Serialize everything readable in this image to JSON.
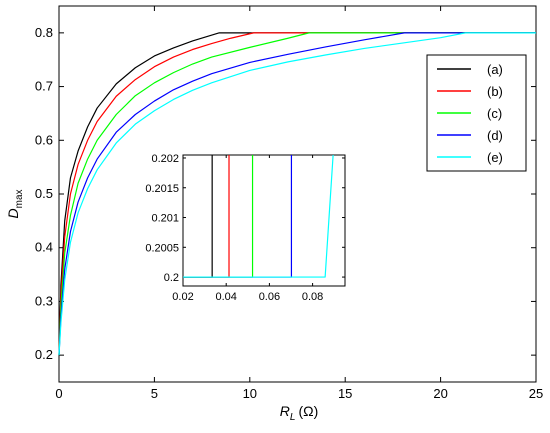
{
  "chart_data": {
    "type": "line",
    "xlabel_main": "R",
    "xlabel_sub": "L",
    "xlabel_unit": "(Ω)",
    "ylabel_main": "D",
    "ylabel_sub": "max",
    "xlim": [
      0,
      25
    ],
    "ylim": [
      0.15,
      0.85
    ],
    "xticks": [
      0,
      5,
      10,
      15,
      20,
      25
    ],
    "yticks": [
      0.2,
      0.3,
      0.4,
      0.5,
      0.6,
      0.7,
      0.8
    ],
    "xtick_labels": [
      "0",
      "5",
      "10",
      "15",
      "20",
      "25"
    ],
    "ytick_labels": [
      "0.2",
      "0.3",
      "0.4",
      "0.5",
      "0.6",
      "0.7",
      "0.8"
    ],
    "legend_position": "top-right",
    "grid": false,
    "series": [
      {
        "name": "(a)",
        "color": "#000000",
        "x": [
          0,
          0.1,
          0.3,
          0.6,
          1,
          1.5,
          2,
          3,
          4,
          5,
          6,
          7,
          8.4,
          25
        ],
        "y": [
          0.2,
          0.33,
          0.45,
          0.53,
          0.58,
          0.625,
          0.66,
          0.705,
          0.735,
          0.757,
          0.772,
          0.785,
          0.8,
          0.8
        ]
      },
      {
        "name": "(b)",
        "color": "#ff0000",
        "x": [
          0,
          0.1,
          0.3,
          0.6,
          1,
          1.5,
          2,
          3,
          4,
          5,
          6,
          7,
          8,
          9,
          10.2,
          25
        ],
        "y": [
          0.2,
          0.31,
          0.42,
          0.5,
          0.555,
          0.6,
          0.635,
          0.682,
          0.713,
          0.737,
          0.755,
          0.769,
          0.78,
          0.79,
          0.8,
          0.8
        ]
      },
      {
        "name": "(c)",
        "color": "#00ff00",
        "x": [
          0,
          0.1,
          0.3,
          0.6,
          1,
          1.5,
          2,
          3,
          4,
          5,
          6,
          7,
          8,
          10,
          12,
          13.1,
          25
        ],
        "y": [
          0.2,
          0.29,
          0.39,
          0.46,
          0.52,
          0.565,
          0.6,
          0.648,
          0.683,
          0.707,
          0.726,
          0.742,
          0.755,
          0.773,
          0.79,
          0.8,
          0.8
        ]
      },
      {
        "name": "(d)",
        "color": "#0000ff",
        "x": [
          0,
          0.1,
          0.3,
          0.6,
          1,
          1.5,
          2,
          3,
          4,
          5,
          6,
          7,
          8,
          10,
          12,
          14,
          16,
          18.1,
          25
        ],
        "y": [
          0.2,
          0.27,
          0.36,
          0.43,
          0.485,
          0.53,
          0.565,
          0.615,
          0.648,
          0.673,
          0.694,
          0.71,
          0.724,
          0.745,
          0.76,
          0.774,
          0.787,
          0.8,
          0.8
        ]
      },
      {
        "name": "(e)",
        "color": "#00ffff",
        "x": [
          0,
          0.1,
          0.3,
          0.6,
          1,
          1.5,
          2,
          3,
          4,
          5,
          6,
          7,
          8,
          10,
          12,
          14,
          16,
          18,
          20,
          21.3,
          25
        ],
        "y": [
          0.2,
          0.26,
          0.34,
          0.41,
          0.465,
          0.51,
          0.545,
          0.595,
          0.63,
          0.655,
          0.676,
          0.693,
          0.707,
          0.73,
          0.746,
          0.759,
          0.771,
          0.781,
          0.791,
          0.8,
          0.8
        ]
      }
    ],
    "inset": {
      "xlim": [
        0.02,
        0.095
      ],
      "ylim": [
        0.19985,
        0.20205
      ],
      "xticks": [
        0.02,
        0.04,
        0.06,
        0.08
      ],
      "yticks": [
        0.2,
        0.2005,
        0.201,
        0.2015,
        0.202
      ],
      "xtick_labels": [
        "0.02",
        "0.04",
        "0.06",
        "0.08"
      ],
      "ytick_labels": [
        "0.2",
        "0.2005",
        "0.201",
        "0.2015",
        "0.202"
      ],
      "series": [
        {
          "name": "(a)",
          "color": "#000000",
          "x": [
            0.02,
            0.0335,
            0.0335
          ],
          "y": [
            0.2,
            0.2,
            0.20205
          ]
        },
        {
          "name": "(b)",
          "color": "#ff0000",
          "x": [
            0.02,
            0.0413,
            0.0413
          ],
          "y": [
            0.2,
            0.2,
            0.20205
          ]
        },
        {
          "name": "(c)",
          "color": "#00ff00",
          "x": [
            0.02,
            0.0522,
            0.0522
          ],
          "y": [
            0.2,
            0.2,
            0.20205
          ]
        },
        {
          "name": "(d)",
          "color": "#0000ff",
          "x": [
            0.02,
            0.0702,
            0.0702
          ],
          "y": [
            0.2,
            0.2,
            0.20205
          ]
        },
        {
          "name": "(e)",
          "color": "#00ffff",
          "x": [
            0.02,
            0.0858,
            0.0895
          ],
          "y": [
            0.2,
            0.2,
            0.20205
          ]
        }
      ]
    }
  }
}
